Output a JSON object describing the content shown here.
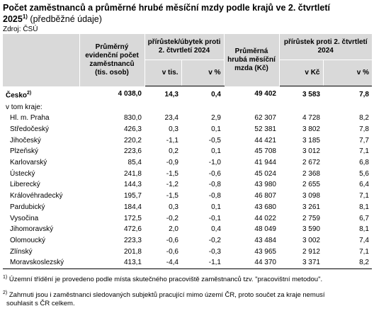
{
  "title": {
    "line1": "Počet zaměstnanců a průměrné hrubé měsíční mzdy podle krajů ve 2. čtvrtletí",
    "line2_year": "2025",
    "line2_sup": "1)",
    "line2_sub": " (předběžné údaje)"
  },
  "source": "Zdroj: ČSÚ",
  "headers": {
    "col1": "Průměrný evidenční počet zaměstnanců (tis. osob)",
    "group1": "přírůstek/úbytek proti 2. čtvrtletí 2024",
    "col3": "Průměrná hrubá měsíční mzda (Kč)",
    "group2": "přírůstek proti 2. čtvrtletí 2024",
    "sub_vtis": "v tis.",
    "sub_pct1": "v %",
    "sub_vkc": "v Kč",
    "sub_pct2": "v %"
  },
  "total": {
    "label": "Česko",
    "sup": "2)",
    "employees": "4 038,0",
    "change_tis": "14,3",
    "change_pct": "0,4",
    "wage": "49 402",
    "wage_change_kc": "3 583",
    "wage_change_pct": "7,8"
  },
  "section_label": "v tom kraje:",
  "regions": [
    {
      "name": "Hl. m. Praha",
      "employees": "830,0",
      "change_tis": "23,4",
      "change_pct": "2,9",
      "wage": "62 307",
      "wage_change_kc": "4 728",
      "wage_change_pct": "8,2"
    },
    {
      "name": "Středočeský",
      "employees": "426,3",
      "change_tis": "0,3",
      "change_pct": "0,1",
      "wage": "52 381",
      "wage_change_kc": "3 802",
      "wage_change_pct": "7,8"
    },
    {
      "name": "Jihočeský",
      "employees": "220,2",
      "change_tis": "-1,1",
      "change_pct": "-0,5",
      "wage": "44 421",
      "wage_change_kc": "3 185",
      "wage_change_pct": "7,7"
    },
    {
      "name": "Plzeňský",
      "employees": "223,6",
      "change_tis": "0,2",
      "change_pct": "0,1",
      "wage": "45 708",
      "wage_change_kc": "3 012",
      "wage_change_pct": "7,1"
    },
    {
      "name": "Karlovarský",
      "employees": "85,4",
      "change_tis": "-0,9",
      "change_pct": "-1,0",
      "wage": "41 944",
      "wage_change_kc": "2 672",
      "wage_change_pct": "6,8"
    },
    {
      "name": "Ústecký",
      "employees": "241,8",
      "change_tis": "-1,5",
      "change_pct": "-0,6",
      "wage": "45 024",
      "wage_change_kc": "2 368",
      "wage_change_pct": "5,6"
    },
    {
      "name": "Liberecký",
      "employees": "144,3",
      "change_tis": "-1,2",
      "change_pct": "-0,8",
      "wage": "43 980",
      "wage_change_kc": "2 655",
      "wage_change_pct": "6,4"
    },
    {
      "name": "Královéhradecký",
      "employees": "195,7",
      "change_tis": "-1,5",
      "change_pct": "-0,8",
      "wage": "46 807",
      "wage_change_kc": "3 098",
      "wage_change_pct": "7,1"
    },
    {
      "name": "Pardubický",
      "employees": "184,4",
      "change_tis": "0,3",
      "change_pct": "0,1",
      "wage": "43 680",
      "wage_change_kc": "3 261",
      "wage_change_pct": "8,1"
    },
    {
      "name": "Vysočina",
      "employees": "172,5",
      "change_tis": "-0,2",
      "change_pct": "-0,1",
      "wage": "44 022",
      "wage_change_kc": "2 759",
      "wage_change_pct": "6,7"
    },
    {
      "name": "Jihomoravský",
      "employees": "472,6",
      "change_tis": "2,0",
      "change_pct": "0,4",
      "wage": "48 049",
      "wage_change_kc": "3 590",
      "wage_change_pct": "8,1"
    },
    {
      "name": "Olomoucký",
      "employees": "223,3",
      "change_tis": "-0,6",
      "change_pct": "-0,2",
      "wage": "43 484",
      "wage_change_kc": "3 002",
      "wage_change_pct": "7,4"
    },
    {
      "name": "Zlínský",
      "employees": "201,8",
      "change_tis": "-0,6",
      "change_pct": "-0,3",
      "wage": "43 965",
      "wage_change_kc": "2 912",
      "wage_change_pct": "7,1"
    },
    {
      "name": "Moravskoslezský",
      "employees": "413,1",
      "change_tis": "-4,4",
      "change_pct": "-1,1",
      "wage": "44 370",
      "wage_change_kc": "3 371",
      "wage_change_pct": "8,2"
    }
  ],
  "notes": {
    "n1_mark": "1)",
    "n1_text": " Územní třídění je provedeno podle místa skutečného pracoviště zaměstnanců tzv. \"pracovištní metodou\".",
    "n2_mark": "2)",
    "n2_text": " Zahrnuti jsou i zaměstnanci sledovaných subjektů pracující mimo území ČR, proto součet za kraje nemusí",
    "n2_cont": "souhlasit s ČR celkem."
  }
}
